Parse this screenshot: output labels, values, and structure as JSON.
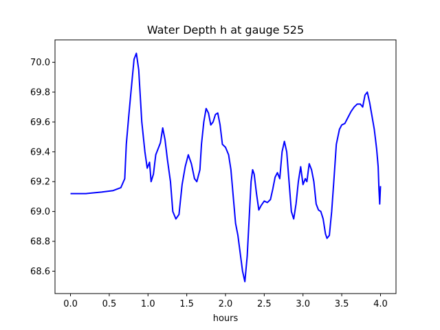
{
  "chart_data": {
    "type": "line",
    "title": "Water Depth h at gauge 525",
    "xlabel": "hours",
    "ylabel": "",
    "xlim": [
      -0.2,
      4.2
    ],
    "ylim": [
      68.45,
      70.15
    ],
    "xticks": [
      0.0,
      0.5,
      1.0,
      1.5,
      2.0,
      2.5,
      3.0,
      3.5,
      4.0
    ],
    "xtick_labels": [
      "0.0",
      "0.5",
      "1.0",
      "1.5",
      "2.0",
      "2.5",
      "3.0",
      "3.5",
      "4.0"
    ],
    "yticks": [
      68.6,
      68.8,
      69.0,
      69.2,
      69.4,
      69.6,
      69.8,
      70.0
    ],
    "ytick_labels": [
      "68.6",
      "68.8",
      "69.0",
      "69.2",
      "69.4",
      "69.6",
      "69.8",
      "70.0"
    ],
    "grid": false,
    "series": [
      {
        "color": "#0000ff",
        "x": [
          0.0,
          0.2,
          0.4,
          0.55,
          0.65,
          0.7,
          0.72,
          0.75,
          0.78,
          0.82,
          0.85,
          0.88,
          0.92,
          0.96,
          0.99,
          1.02,
          1.04,
          1.07,
          1.1,
          1.13,
          1.16,
          1.19,
          1.22,
          1.25,
          1.29,
          1.32,
          1.36,
          1.4,
          1.44,
          1.48,
          1.52,
          1.56,
          1.6,
          1.63,
          1.65,
          1.67,
          1.69,
          1.72,
          1.75,
          1.78,
          1.81,
          1.84,
          1.87,
          1.9,
          1.93,
          1.96,
          2.0,
          2.04,
          2.07,
          2.1,
          2.13,
          2.16,
          2.19,
          2.22,
          2.25,
          2.28,
          2.31,
          2.33,
          2.35,
          2.37,
          2.4,
          2.43,
          2.46,
          2.5,
          2.54,
          2.58,
          2.61,
          2.64,
          2.67,
          2.7,
          2.73,
          2.76,
          2.79,
          2.82,
          2.85,
          2.88,
          2.91,
          2.94,
          2.97,
          3.0,
          3.03,
          3.05,
          3.08,
          3.11,
          3.14,
          3.17,
          3.2,
          3.23,
          3.26,
          3.29,
          3.31,
          3.34,
          3.37,
          3.4,
          3.43,
          3.47,
          3.5,
          3.54,
          3.58,
          3.62,
          3.66,
          3.7,
          3.74,
          3.77,
          3.8,
          3.83,
          3.86,
          3.89,
          3.92,
          3.95,
          3.97,
          3.98,
          3.99,
          4.0
        ],
        "y": [
          69.12,
          69.12,
          69.13,
          69.14,
          69.16,
          69.22,
          69.45,
          69.63,
          69.8,
          70.02,
          70.06,
          69.95,
          69.6,
          69.4,
          69.29,
          69.33,
          69.2,
          69.25,
          69.38,
          69.42,
          69.46,
          69.56,
          69.48,
          69.35,
          69.2,
          69.0,
          68.95,
          68.98,
          69.18,
          69.3,
          69.38,
          69.32,
          69.22,
          69.2,
          69.24,
          69.28,
          69.45,
          69.6,
          69.69,
          69.66,
          69.58,
          69.6,
          69.65,
          69.66,
          69.58,
          69.45,
          69.43,
          69.38,
          69.28,
          69.1,
          68.92,
          68.84,
          68.72,
          68.6,
          68.53,
          68.7,
          69.0,
          69.2,
          69.28,
          69.25,
          69.12,
          69.01,
          69.04,
          69.07,
          69.06,
          69.08,
          69.15,
          69.23,
          69.26,
          69.22,
          69.4,
          69.47,
          69.4,
          69.2,
          69.0,
          68.95,
          69.05,
          69.2,
          69.3,
          69.18,
          69.22,
          69.2,
          69.32,
          69.28,
          69.2,
          69.05,
          69.01,
          69.0,
          68.95,
          68.85,
          68.82,
          68.84,
          69.0,
          69.22,
          69.45,
          69.55,
          69.58,
          69.59,
          69.63,
          69.67,
          69.7,
          69.72,
          69.72,
          69.7,
          69.78,
          69.8,
          69.73,
          69.64,
          69.55,
          69.42,
          69.3,
          69.15,
          69.05,
          69.17
        ]
      }
    ]
  }
}
